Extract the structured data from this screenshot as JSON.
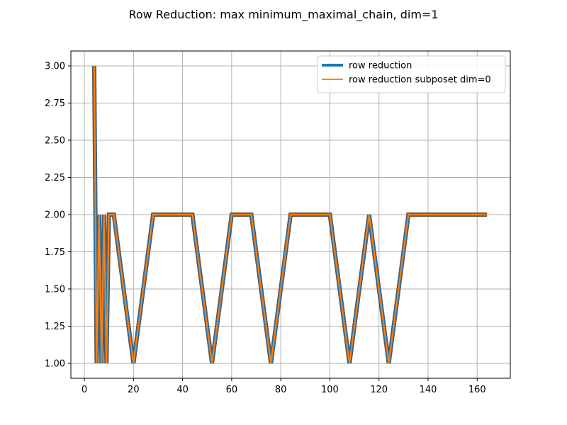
{
  "chart_data": {
    "type": "line",
    "title": "Row Reduction: max minimum_maximal_chain, dim=1",
    "xlabel": "",
    "ylabel": "",
    "xlim": [
      -5.5,
      173.5
    ],
    "ylim": [
      0.9,
      3.1
    ],
    "grid": true,
    "legend_position": "top-right",
    "xticks": [
      0,
      20,
      40,
      60,
      80,
      100,
      120,
      140,
      160
    ],
    "xtick_labels": [
      "0",
      "20",
      "40",
      "60",
      "80",
      "100",
      "120",
      "140",
      "160"
    ],
    "yticks": [
      1.0,
      1.25,
      1.5,
      1.75,
      2.0,
      2.25,
      2.5,
      2.75,
      3.0
    ],
    "ytick_labels": [
      "1.00",
      "1.25",
      "1.50",
      "1.75",
      "2.00",
      "2.25",
      "2.50",
      "2.75",
      "3.00"
    ],
    "series": [
      {
        "name": "row reduction",
        "color": "#1f77b4",
        "x": [
          4,
          5,
          6,
          7,
          8,
          9,
          10,
          12,
          20,
          28,
          36,
          44,
          52,
          60,
          68,
          76,
          84,
          92,
          100,
          108,
          116,
          124,
          132,
          140,
          148,
          156,
          164
        ],
        "y": [
          3,
          1,
          2,
          1,
          2,
          1,
          2,
          2,
          1,
          2,
          2,
          2,
          1,
          2,
          2,
          1,
          2,
          2,
          2,
          1,
          2,
          1,
          2,
          2,
          2,
          2,
          2
        ]
      },
      {
        "name": "row reduction subposet dim=0",
        "color": "#ff7f0e",
        "x": [
          4,
          5,
          6,
          7,
          8,
          9,
          10,
          12,
          20,
          28,
          36,
          44,
          52,
          60,
          68,
          76,
          84,
          92,
          100,
          108,
          116,
          124,
          132,
          140,
          148,
          156,
          164
        ],
        "y": [
          3,
          1,
          2,
          1,
          2,
          1,
          2,
          2,
          1,
          2,
          2,
          2,
          1,
          2,
          2,
          1,
          2,
          2,
          2,
          1,
          2,
          1,
          2,
          2,
          2,
          2,
          2
        ]
      }
    ]
  }
}
